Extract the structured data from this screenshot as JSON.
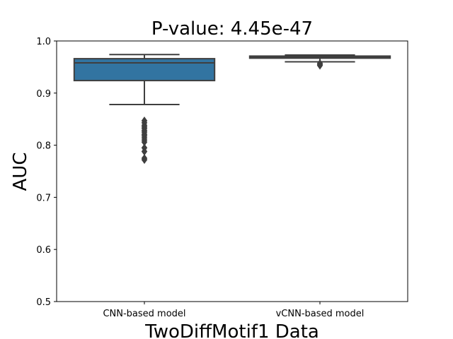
{
  "chart_data": {
    "type": "box",
    "title": "P-value: 4.45e-47",
    "xlabel": "TwoDiffMotif1 Data",
    "ylabel": "AUC",
    "ylim": [
      0.5,
      1.0
    ],
    "yticks": [
      0.5,
      0.6,
      0.7,
      0.8,
      0.9,
      1.0
    ],
    "ytick_labels": [
      "0.5",
      "0.6",
      "0.7",
      "0.8",
      "0.9",
      "1.0"
    ],
    "grid": false,
    "legend": "none",
    "categories": [
      "CNN-based model",
      "vCNN-based model"
    ],
    "boxes": [
      {
        "category": "CNN-based model",
        "whisker_low": 0.878,
        "q1": 0.924,
        "median": 0.958,
        "q3": 0.966,
        "whisker_high": 0.974,
        "outliers": [
          0.847,
          0.843,
          0.838,
          0.835,
          0.832,
          0.828,
          0.825,
          0.821,
          0.818,
          0.814,
          0.81,
          0.806,
          0.795,
          0.788,
          0.775,
          0.772
        ],
        "color": "#3274a1"
      },
      {
        "category": "vCNN-based model",
        "whisker_low": 0.96,
        "q1": 0.967,
        "median": 0.969,
        "q3": 0.971,
        "whisker_high": 0.973,
        "outliers": [
          0.957,
          0.955,
          0.953
        ],
        "color": "#3274a1"
      }
    ]
  }
}
